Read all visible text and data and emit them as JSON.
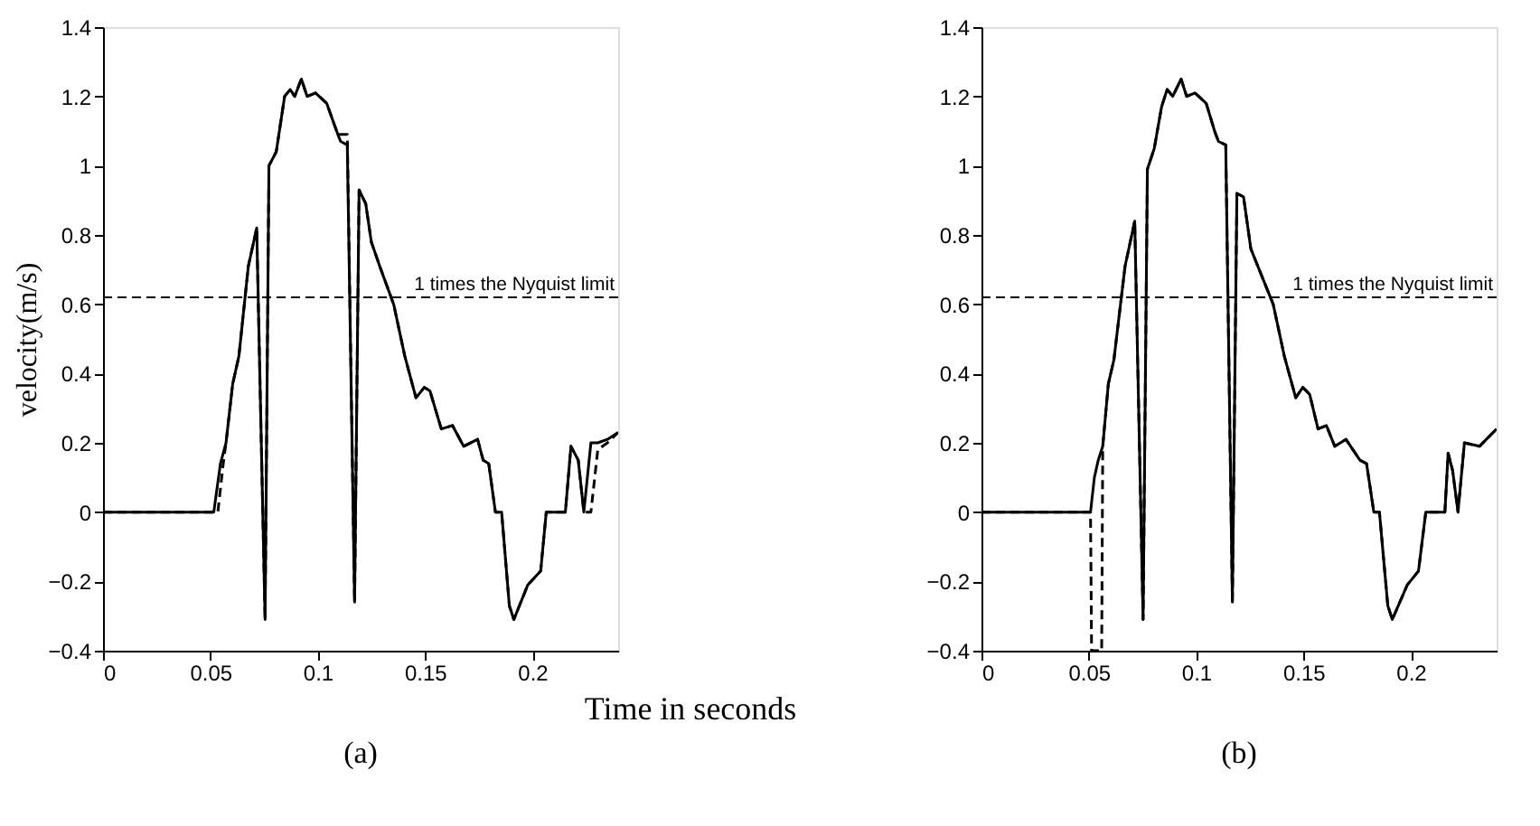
{
  "chart_data": [
    {
      "type": "line",
      "ylabel": "velocity(m/s)",
      "xlabel": "Time in seconds",
      "xlim": [
        0,
        0.24
      ],
      "ylim": [
        -0.4,
        1.4
      ],
      "xticks": [
        0,
        0.05,
        0.1,
        0.15,
        0.2
      ],
      "yticks": [
        -0.4,
        -0.2,
        0,
        0.2,
        0.4,
        0.6,
        0.8,
        1,
        1.2,
        1.4
      ],
      "grid": false,
      "series": [
        {
          "color": "#000000",
          "line_style": "solid",
          "x": [
            0,
            0.0516,
            0.0547,
            0.0573,
            0.0604,
            0.0633,
            0.0677,
            0.0716,
            0.0755,
            0.0773,
            0.0807,
            0.0846,
            0.0872,
            0.0893,
            0.0924,
            0.0951,
            0.099,
            0.1042,
            0.1094,
            0.1107,
            0.1138,
            0.1172,
            0.1193,
            0.1224,
            0.125,
            0.1289,
            0.1354,
            0.1406,
            0.1458,
            0.1497,
            0.1523,
            0.1576,
            0.1628,
            0.168,
            0.1745,
            0.1771,
            0.1797,
            0.1828,
            0.1857,
            0.1893,
            0.1914,
            0.1979,
            0.2039,
            0.2065,
            0.2154,
            0.218,
            0.2214,
            0.224,
            0.2273,
            0.2305,
            0.235,
            0.24
          ],
          "values": [
            0,
            0,
            0.14,
            0.2,
            0.37,
            0.45,
            0.71,
            0.82,
            -0.31,
            1.0,
            1.04,
            1.2,
            1.22,
            1.2,
            1.25,
            1.2,
            1.21,
            1.18,
            1.09,
            1.07,
            1.06,
            -0.26,
            0.93,
            0.89,
            0.78,
            0.71,
            0.6,
            0.45,
            0.33,
            0.36,
            0.35,
            0.24,
            0.25,
            0.19,
            0.21,
            0.15,
            0.14,
            0,
            0,
            -0.27,
            -0.31,
            -0.21,
            -0.17,
            0,
            0,
            0.19,
            0.15,
            0,
            0.2,
            0.2,
            0.21,
            0.23
          ]
        },
        {
          "color": "#000000",
          "line_style": "dashed",
          "x": [
            0,
            0.0535,
            0.056,
            0.0573,
            0.0604,
            0.0633,
            0.0677,
            0.0716,
            0.0755,
            0.0773,
            0.0807,
            0.0846,
            0.0872,
            0.0893,
            0.0924,
            0.0951,
            0.099,
            0.1042,
            0.1094,
            0.1138,
            0.1172,
            0.1193,
            0.1224,
            0.125,
            0.1289,
            0.1354,
            0.1406,
            0.1458,
            0.1497,
            0.1523,
            0.1576,
            0.1628,
            0.168,
            0.1745,
            0.1771,
            0.1797,
            0.1828,
            0.1857,
            0.1893,
            0.1914,
            0.1979,
            0.2039,
            0.2065,
            0.2154,
            0.218,
            0.2214,
            0.224,
            0.2273,
            0.2305,
            0.235,
            0.24
          ],
          "values": [
            0,
            0,
            0.14,
            0.2,
            0.37,
            0.45,
            0.71,
            0.82,
            -0.31,
            1.0,
            1.04,
            1.2,
            1.22,
            1.2,
            1.25,
            1.2,
            1.21,
            1.18,
            1.09,
            1.09,
            -0.26,
            0.93,
            0.89,
            0.78,
            0.71,
            0.6,
            0.45,
            0.33,
            0.36,
            0.35,
            0.24,
            0.25,
            0.19,
            0.21,
            0.15,
            0.14,
            0,
            0,
            -0.27,
            -0.31,
            -0.21,
            -0.17,
            0,
            0,
            0.19,
            0.15,
            0,
            0,
            0.18,
            0.2,
            0.23
          ]
        }
      ],
      "ref_lines": [
        {
          "axis": "y",
          "value": 0.62,
          "label": "1 times the Nyquist limit",
          "line_style": "dashed",
          "color": "#000000"
        }
      ],
      "annotations": [
        "(a)"
      ]
    },
    {
      "type": "line",
      "xlim": [
        0,
        0.24
      ],
      "ylim": [
        -0.4,
        1.4
      ],
      "xticks": [
        0,
        0.05,
        0.1,
        0.15,
        0.2
      ],
      "yticks": [
        -0.4,
        -0.2,
        0,
        0.2,
        0.4,
        0.6,
        0.8,
        1,
        1.2,
        1.4
      ],
      "grid": false,
      "series": [
        {
          "color": "#000000",
          "line_style": "solid",
          "x": [
            0,
            0.0508,
            0.0526,
            0.0544,
            0.0565,
            0.0591,
            0.0617,
            0.0669,
            0.0714,
            0.0753,
            0.0773,
            0.0805,
            0.0839,
            0.0865,
            0.0891,
            0.093,
            0.0956,
            0.0995,
            0.1047,
            0.1086,
            0.1104,
            0.1138,
            0.1169,
            0.119,
            0.1221,
            0.1255,
            0.1294,
            0.1359,
            0.1411,
            0.1464,
            0.1497,
            0.1529,
            0.1568,
            0.1607,
            0.1646,
            0.1698,
            0.1763,
            0.1794,
            0.1828,
            0.1854,
            0.1893,
            0.1914,
            0.1984,
            0.2036,
            0.207,
            0.2159,
            0.2174,
            0.2195,
            0.222,
            0.225,
            0.232,
            0.24
          ],
          "values": [
            0,
            0,
            0.1,
            0.15,
            0.19,
            0.37,
            0.44,
            0.71,
            0.84,
            -0.31,
            0.99,
            1.05,
            1.17,
            1.22,
            1.2,
            1.25,
            1.2,
            1.21,
            1.18,
            1.1,
            1.07,
            1.06,
            -0.26,
            0.92,
            0.91,
            0.76,
            0.7,
            0.6,
            0.45,
            0.33,
            0.36,
            0.34,
            0.24,
            0.25,
            0.19,
            0.21,
            0.15,
            0.14,
            0,
            0,
            -0.27,
            -0.31,
            -0.21,
            -0.17,
            0,
            0,
            0.17,
            0.12,
            0,
            0.2,
            0.19,
            0.24
          ]
        },
        {
          "color": "#000000",
          "line_style": "dashed",
          "x": [
            0,
            0.0508,
            0.0513,
            0.056,
            0.0565,
            0.0591,
            0.0617,
            0.0669,
            0.0714,
            0.0753,
            0.0773,
            0.0805,
            0.0839,
            0.0865,
            0.0891,
            0.093,
            0.0956,
            0.0995,
            0.1047,
            0.1086,
            0.1104,
            0.1138,
            0.1169,
            0.119,
            0.1221,
            0.1255,
            0.1294,
            0.1359,
            0.1411,
            0.1464,
            0.1497,
            0.1529,
            0.1568,
            0.1607,
            0.1646,
            0.1698,
            0.1763,
            0.1794,
            0.1828,
            0.1854,
            0.1893,
            0.1914,
            0.1984,
            0.2036,
            0.207,
            0.2159,
            0.2174,
            0.2195,
            0.222,
            0.225,
            0.232,
            0.24
          ],
          "values": [
            0,
            0,
            -0.4,
            -0.4,
            0.19,
            0.37,
            0.44,
            0.71,
            0.84,
            -0.31,
            0.99,
            1.05,
            1.17,
            1.22,
            1.2,
            1.25,
            1.2,
            1.21,
            1.18,
            1.1,
            1.07,
            1.06,
            -0.26,
            0.92,
            0.91,
            0.76,
            0.7,
            0.6,
            0.45,
            0.33,
            0.36,
            0.34,
            0.24,
            0.25,
            0.19,
            0.21,
            0.15,
            0.14,
            0,
            0,
            -0.27,
            -0.31,
            -0.21,
            -0.17,
            0,
            0,
            0.17,
            0.12,
            0,
            0.2,
            0.19,
            0.24
          ]
        }
      ],
      "ref_lines": [
        {
          "axis": "y",
          "value": 0.62,
          "label": "1 times the Nyquist limit",
          "line_style": "dashed",
          "color": "#000000"
        }
      ],
      "annotations": [
        "(b)"
      ]
    }
  ]
}
